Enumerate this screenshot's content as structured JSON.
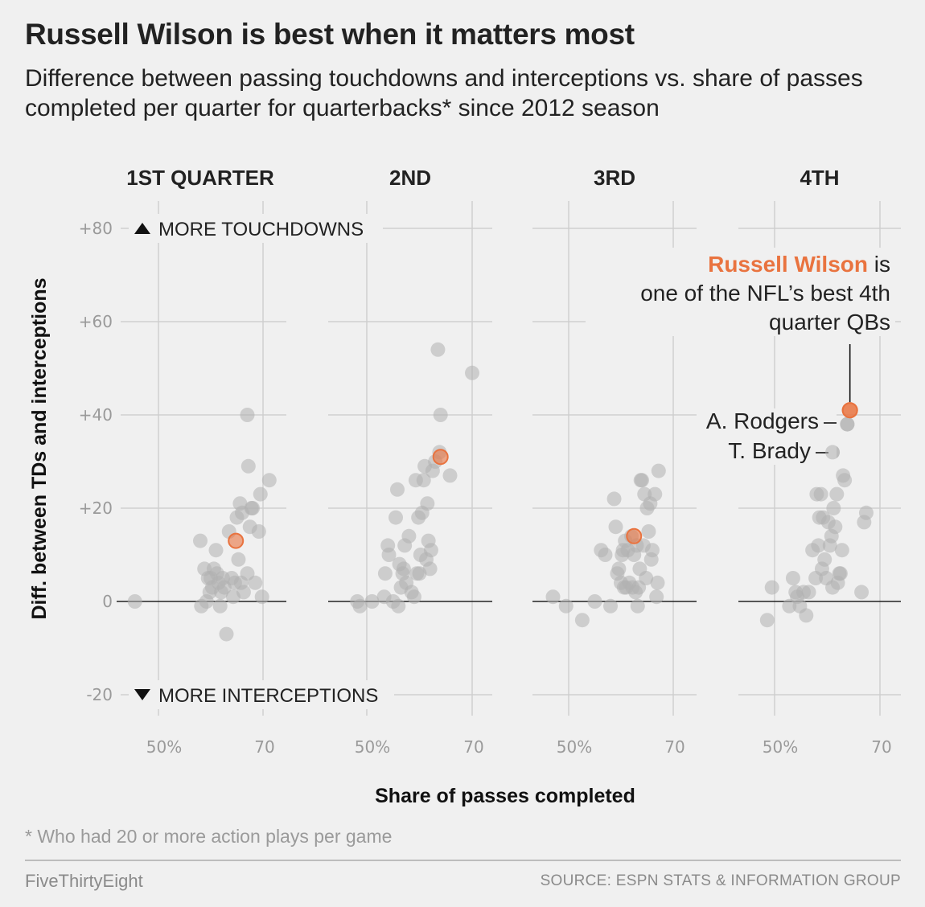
{
  "header": {
    "title": "Russell Wilson is best when it matters most",
    "subtitle": "Difference between passing touchdowns and interceptions vs. share of passes completed per quarter for quarterbacks* since 2012 season"
  },
  "footer": {
    "footnote": "* Who had 20 or more action plays per game",
    "brand": "FiveThirtyEight",
    "source": "SOURCE: ESPN STATS & INFORMATION GROUP"
  },
  "colors": {
    "background": "#f0f0f0",
    "dot": "#b0b0b0",
    "highlight": "#e9733f",
    "grid": "#cfcfcf",
    "zero_line": "#222222"
  },
  "chart_data": {
    "type": "scatter",
    "xlabel": "Share of passes completed",
    "ylabel": "Diff. between TDs and interceptions",
    "xlim": [
      45,
      75
    ],
    "ylim": [
      -25,
      85
    ],
    "xticks": [
      50,
      70
    ],
    "xtick_labels": [
      "50%",
      "70"
    ],
    "yticks": [
      80,
      60,
      40,
      20,
      0,
      -20
    ],
    "ytick_labels": [
      "+80",
      "+60",
      "+40",
      "+20",
      "0",
      "-20"
    ],
    "annotations": {
      "more_td": "MORE TOUCHDOWNS",
      "more_int": "MORE INTERCEPTIONS",
      "callout_name": "Russell Wilson",
      "callout_line1_rest": " is",
      "callout_line2": "one of the NFL’s best 4th",
      "callout_line3": "quarter QBs",
      "rodgers": "A. Rodgers",
      "brady": "T. Brady"
    },
    "highlight_name": "Russell Wilson",
    "panels": [
      {
        "title": "1ST QUARTER",
        "highlight": [
          64.8,
          13
        ],
        "points": [
          [
            45.5,
            0
          ],
          [
            58,
            13
          ],
          [
            58.2,
            -1
          ],
          [
            58.8,
            7
          ],
          [
            59.2,
            0
          ],
          [
            59.5,
            5
          ],
          [
            59.8,
            2
          ],
          [
            60,
            5
          ],
          [
            60.3,
            3
          ],
          [
            60.6,
            7
          ],
          [
            61,
            11
          ],
          [
            61.2,
            6
          ],
          [
            61.5,
            4
          ],
          [
            61.8,
            -1
          ],
          [
            62,
            2
          ],
          [
            62.3,
            5
          ],
          [
            62.6,
            3
          ],
          [
            63,
            -7
          ],
          [
            63.5,
            15
          ],
          [
            64,
            5
          ],
          [
            64.3,
            1
          ],
          [
            64.6,
            4
          ],
          [
            65,
            18
          ],
          [
            65.3,
            9
          ],
          [
            65.6,
            21
          ],
          [
            65.8,
            4
          ],
          [
            66,
            19
          ],
          [
            66.3,
            2
          ],
          [
            67,
            6
          ],
          [
            67.2,
            29
          ],
          [
            67.5,
            16
          ],
          [
            67.8,
            20
          ],
          [
            68,
            20
          ],
          [
            68.5,
            4
          ],
          [
            69.2,
            15
          ],
          [
            69.5,
            23
          ],
          [
            69.8,
            1
          ],
          [
            67,
            40
          ],
          [
            71.2,
            26
          ]
        ]
      },
      {
        "title": "2ND",
        "highlight": [
          64,
          31
        ],
        "points": [
          [
            48.2,
            0
          ],
          [
            48.7,
            -1
          ],
          [
            51,
            0
          ],
          [
            53.3,
            1
          ],
          [
            53.5,
            6
          ],
          [
            54,
            12
          ],
          [
            54.2,
            10
          ],
          [
            55,
            0
          ],
          [
            55.5,
            18
          ],
          [
            55.8,
            24
          ],
          [
            56,
            -1
          ],
          [
            56.2,
            8
          ],
          [
            56.5,
            3
          ],
          [
            56.8,
            6
          ],
          [
            57,
            7
          ],
          [
            57.2,
            12
          ],
          [
            57.5,
            4
          ],
          [
            58,
            14
          ],
          [
            58.5,
            2
          ],
          [
            59,
            1
          ],
          [
            59.3,
            26
          ],
          [
            59.5,
            6
          ],
          [
            59.8,
            18
          ],
          [
            60,
            6
          ],
          [
            60.2,
            10
          ],
          [
            60.5,
            19
          ],
          [
            60.8,
            26
          ],
          [
            61,
            29
          ],
          [
            61.3,
            9
          ],
          [
            61.5,
            21
          ],
          [
            61.7,
            13
          ],
          [
            62,
            7
          ],
          [
            62.2,
            11
          ],
          [
            62.5,
            28
          ],
          [
            63,
            30
          ],
          [
            63.8,
            32
          ],
          [
            64,
            40
          ],
          [
            63.5,
            54
          ],
          [
            65.8,
            27
          ],
          [
            70,
            49
          ]
        ]
      },
      {
        "title": "3RD",
        "highlight": [
          62.5,
          14
        ],
        "points": [
          [
            47,
            1
          ],
          [
            49.5,
            -1
          ],
          [
            52.6,
            -4
          ],
          [
            55,
            0
          ],
          [
            56.2,
            11
          ],
          [
            57,
            10
          ],
          [
            58,
            -1
          ],
          [
            58.7,
            22
          ],
          [
            59,
            16
          ],
          [
            59.3,
            6
          ],
          [
            59.6,
            7
          ],
          [
            60,
            4
          ],
          [
            60.2,
            10
          ],
          [
            60.4,
            11
          ],
          [
            60.6,
            3
          ],
          [
            60.8,
            13
          ],
          [
            61,
            3
          ],
          [
            61.3,
            11
          ],
          [
            61.6,
            4
          ],
          [
            62,
            14
          ],
          [
            62.2,
            3
          ],
          [
            62.5,
            10
          ],
          [
            62.8,
            2
          ],
          [
            63,
            12
          ],
          [
            63.2,
            -1
          ],
          [
            63.4,
            3
          ],
          [
            63.6,
            7
          ],
          [
            63.8,
            26
          ],
          [
            64,
            26
          ],
          [
            64.3,
            12
          ],
          [
            64.5,
            23
          ],
          [
            64.8,
            5
          ],
          [
            65,
            20
          ],
          [
            65.3,
            15
          ],
          [
            65.6,
            21
          ],
          [
            65.8,
            9
          ],
          [
            66,
            11
          ],
          [
            66.5,
            23
          ],
          [
            66.8,
            1
          ],
          [
            67,
            4
          ],
          [
            67.2,
            28
          ]
        ]
      },
      {
        "title": "4TH",
        "highlight": [
          64.3,
          41
        ],
        "points": [
          [
            48.6,
            -4
          ],
          [
            49.5,
            3
          ],
          [
            52.8,
            -1
          ],
          [
            53.5,
            5
          ],
          [
            54,
            2
          ],
          [
            54.3,
            1
          ],
          [
            54.8,
            -1
          ],
          [
            55.5,
            2
          ],
          [
            56,
            -3
          ],
          [
            56.5,
            2
          ],
          [
            57.2,
            11
          ],
          [
            57.8,
            5
          ],
          [
            58,
            23
          ],
          [
            58.3,
            12
          ],
          [
            58.5,
            18
          ],
          [
            58.8,
            23
          ],
          [
            59,
            7
          ],
          [
            59.2,
            18
          ],
          [
            59.5,
            9
          ],
          [
            59.8,
            5
          ],
          [
            60.2,
            17
          ],
          [
            60.5,
            12
          ],
          [
            60.8,
            14
          ],
          [
            61,
            3
          ],
          [
            61.2,
            20
          ],
          [
            61.5,
            16
          ],
          [
            61.8,
            23
          ],
          [
            62,
            4
          ],
          [
            62.3,
            6
          ],
          [
            62.5,
            6
          ],
          [
            62.8,
            11
          ],
          [
            63,
            27
          ],
          [
            63.3,
            26
          ],
          [
            61,
            32
          ],
          [
            63.8,
            38
          ],
          [
            66.5,
            2
          ],
          [
            67,
            17
          ],
          [
            67.4,
            19
          ]
        ]
      }
    ]
  }
}
